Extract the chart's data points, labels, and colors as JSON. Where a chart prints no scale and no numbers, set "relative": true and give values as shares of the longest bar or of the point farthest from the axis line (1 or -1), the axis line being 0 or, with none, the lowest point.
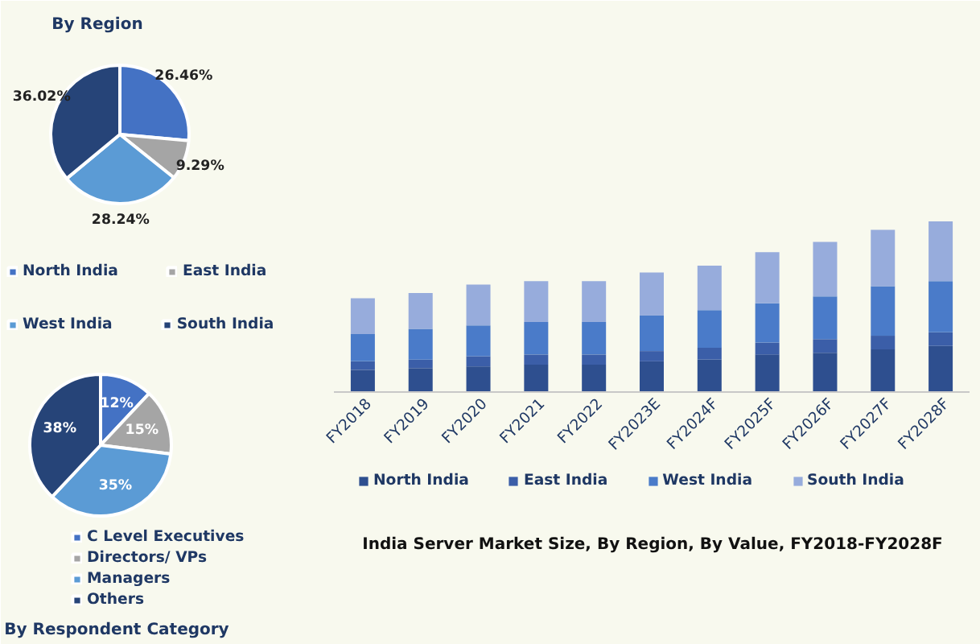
{
  "chart_data": [
    {
      "type": "pie",
      "title": "By Region",
      "categories": [
        "North India",
        "East India",
        "West India",
        "South India"
      ],
      "values": [
        26.46,
        9.29,
        28.24,
        36.02
      ],
      "colors": [
        "#4472c4",
        "#a5a5a5",
        "#5b9bd5",
        "#264478"
      ],
      "value_labels": [
        "26.46%",
        "9.29%",
        "28.24%",
        "36.02%"
      ],
      "legend": "bottom"
    },
    {
      "type": "pie",
      "title": "By Respondent Category",
      "categories": [
        "C Level Executives",
        "Directors/ VPs",
        "Managers",
        "Others"
      ],
      "values": [
        12,
        15,
        35,
        38
      ],
      "colors": [
        "#4472c4",
        "#a5a5a5",
        "#5b9bd5",
        "#264478"
      ],
      "value_labels": [
        "12%",
        "15%",
        "35%",
        "38%"
      ],
      "legend": "bottom"
    },
    {
      "type": "bar",
      "title": "India Server Market Size, By Region, By Value, FY2018-FY2028F",
      "categories": [
        "FY2018",
        "FY2019",
        "FY2020",
        "FY2021",
        "FY2022",
        "FY2023E",
        "FY2024F",
        "FY2025F",
        "FY2026F",
        "FY2027F",
        "FY2028F"
      ],
      "stacked": true,
      "relative": true,
      "legend": "bottom",
      "grid": false,
      "series": [
        {
          "name": "North India",
          "color": "#2e4f8f",
          "values": [
            0.13,
            0.14,
            0.15,
            0.16,
            0.16,
            0.18,
            0.19,
            0.22,
            0.23,
            0.25,
            0.27
          ]
        },
        {
          "name": "East India",
          "color": "#3b5ea8",
          "values": [
            0.05,
            0.05,
            0.06,
            0.06,
            0.06,
            0.06,
            0.07,
            0.07,
            0.08,
            0.08,
            0.08
          ]
        },
        {
          "name": "West India",
          "color": "#4a7bc9",
          "values": [
            0.16,
            0.18,
            0.18,
            0.19,
            0.19,
            0.21,
            0.22,
            0.23,
            0.25,
            0.29,
            0.3
          ]
        },
        {
          "name": "South India",
          "color": "#97acdc",
          "values": [
            0.21,
            0.21,
            0.24,
            0.24,
            0.24,
            0.25,
            0.26,
            0.3,
            0.32,
            0.33,
            0.35
          ]
        }
      ]
    }
  ]
}
